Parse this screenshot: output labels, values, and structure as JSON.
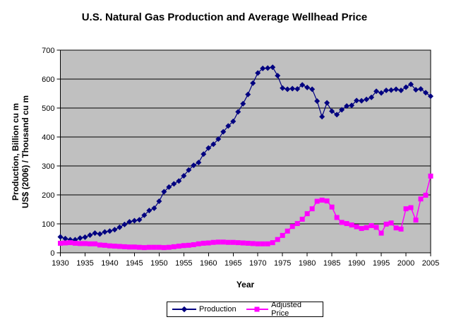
{
  "title": "U.S. Natural Gas Production and Average Wellhead Price",
  "y_axis": {
    "title_line1": "Production, Billion cu m",
    "title_line2": "US$ (2006) / Thousand cu m"
  },
  "x_axis": {
    "title": "Year"
  },
  "legend": {
    "position": "bottom-center",
    "items": [
      {
        "label": "Production",
        "marker": "diamond",
        "color": "#000080"
      },
      {
        "label": "Adjusted Price",
        "marker": "square",
        "color": "#FF00FF"
      }
    ]
  },
  "colors": {
    "plot_background": "#C0C0C0",
    "gridline": "#000000",
    "production_series": "#000080",
    "price_series": "#FF00FF",
    "page_background": "#FFFFFF"
  },
  "chart_data": {
    "type": "line",
    "title": "U.S. Natural Gas Production and Average Wellhead Price",
    "xlabel": "Year",
    "ylabel": "Production, Billion cu m / US$ (2006) / Thousand cu m",
    "xlim": [
      1930,
      2005
    ],
    "ylim": [
      0,
      700
    ],
    "x_ticks": [
      1930,
      1935,
      1940,
      1945,
      1950,
      1955,
      1960,
      1965,
      1970,
      1975,
      1980,
      1985,
      1990,
      1995,
      2000,
      2005
    ],
    "y_ticks": [
      0,
      100,
      200,
      300,
      400,
      500,
      600,
      700
    ],
    "grid": "horizontal",
    "legend_position": "bottom",
    "x": [
      1930,
      1931,
      1932,
      1933,
      1934,
      1935,
      1936,
      1937,
      1938,
      1939,
      1940,
      1941,
      1942,
      1943,
      1944,
      1945,
      1946,
      1947,
      1948,
      1949,
      1950,
      1951,
      1952,
      1953,
      1954,
      1955,
      1956,
      1957,
      1958,
      1959,
      1960,
      1961,
      1962,
      1963,
      1964,
      1965,
      1966,
      1967,
      1968,
      1969,
      1970,
      1971,
      1972,
      1973,
      1974,
      1975,
      1976,
      1977,
      1978,
      1979,
      1980,
      1981,
      1982,
      1983,
      1984,
      1985,
      1986,
      1987,
      1988,
      1989,
      1990,
      1991,
      1992,
      1993,
      1994,
      1995,
      1996,
      1997,
      1998,
      1999,
      2000,
      2001,
      2002,
      2003,
      2004,
      2005
    ],
    "series": [
      {
        "name": "Production",
        "marker": "diamond",
        "color": "#000080",
        "values": [
          55,
          49,
          45,
          45,
          51,
          54,
          61,
          68,
          65,
          72,
          75,
          80,
          88,
          98,
          107,
          111,
          114,
          130,
          146,
          154,
          178,
          211,
          227,
          238,
          248,
          266,
          286,
          302,
          312,
          341,
          362,
          375,
          393,
          418,
          438,
          454,
          487,
          515,
          547,
          586,
          621,
          637,
          638,
          641,
          612,
          569,
          565,
          567,
          566,
          580,
          571,
          565,
          524,
          470,
          518,
          489,
          477,
          494,
          507,
          509,
          526,
          525,
          530,
          537,
          558,
          552,
          561,
          562,
          565,
          561,
          572,
          582,
          563,
          566,
          553,
          541
        ]
      },
      {
        "name": "Adjusted Price",
        "marker": "square",
        "color": "#FF00FF",
        "values": [
          33,
          34,
          35,
          33,
          32,
          32,
          31,
          31,
          27,
          26,
          24,
          23,
          22,
          21,
          20,
          20,
          19,
          18,
          19,
          19,
          19,
          18,
          19,
          21,
          23,
          25,
          26,
          28,
          31,
          33,
          34,
          36,
          37,
          37,
          36,
          36,
          35,
          34,
          33,
          32,
          31,
          31,
          31,
          35,
          46,
          60,
          75,
          91,
          101,
          116,
          135,
          152,
          178,
          182,
          179,
          158,
          122,
          105,
          101,
          96,
          90,
          84,
          87,
          94,
          88,
          68,
          99,
          103,
          86,
          82,
          152,
          156,
          113,
          186,
          199,
          265
        ]
      }
    ]
  }
}
